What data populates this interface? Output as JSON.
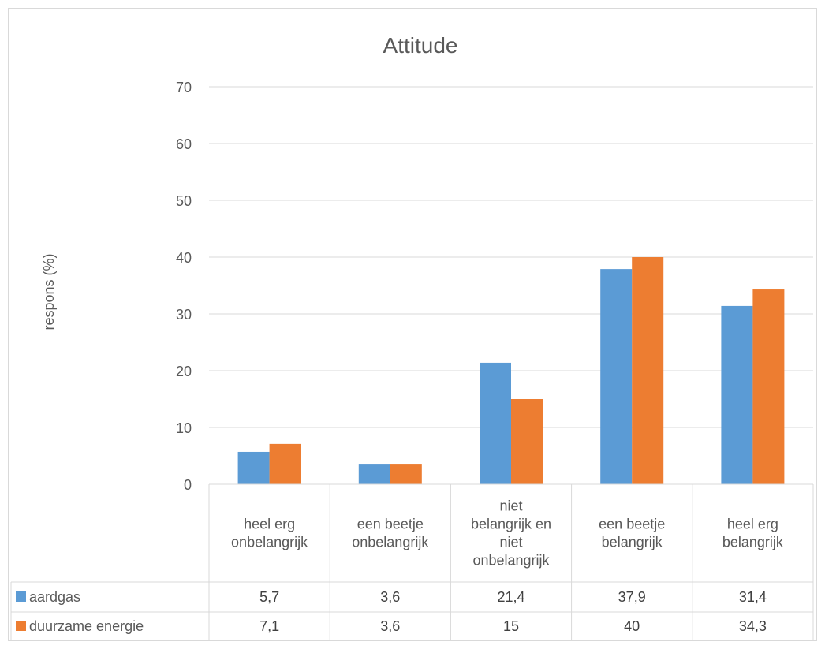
{
  "chart_data": {
    "type": "bar",
    "title": "Attitude",
    "ylabel": "respons (%)",
    "xlabel": "",
    "ylim": [
      0,
      70
    ],
    "yticks": [
      "0",
      "10",
      "20",
      "30",
      "40",
      "50",
      "60",
      "70"
    ],
    "grid": true,
    "legend": "data-table",
    "categories": [
      [
        "heel erg",
        "onbelangrijk"
      ],
      [
        "een beetje",
        "onbelangrijk"
      ],
      [
        "niet",
        "belangrijk en",
        "niet",
        "onbelangrijk"
      ],
      [
        "een beetje",
        "belangrijk"
      ],
      [
        "heel erg",
        "belangrijk"
      ]
    ],
    "series": [
      {
        "name": "aardgas",
        "color": "#5B9BD5",
        "values": [
          5.7,
          3.6,
          21.4,
          37.9,
          31.4
        ],
        "labels": [
          "5,7",
          "3,6",
          "21,4",
          "37,9",
          "31,4"
        ]
      },
      {
        "name": "duurzame energie",
        "color": "#ED7D31",
        "values": [
          7.1,
          3.6,
          15,
          40,
          34.3
        ],
        "labels": [
          "7,1",
          "3,6",
          "15",
          "40",
          "34,3"
        ]
      }
    ]
  }
}
